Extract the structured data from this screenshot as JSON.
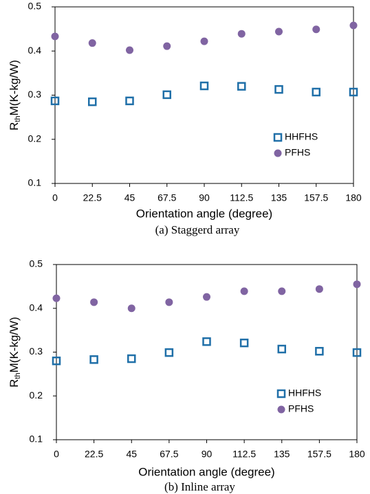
{
  "chart_data": [
    {
      "type": "scatter",
      "caption": "(a)  Staggerd array",
      "xlabel": "Orientation angle (degree)",
      "ylabel": {
        "base": "R",
        "sub": "th",
        "rest": "M(K-kg/W)"
      },
      "x": [
        0,
        22.5,
        45,
        67.5,
        90,
        112.5,
        135,
        157.5,
        180
      ],
      "xlim": [
        0,
        180
      ],
      "xticks": [
        0,
        22.5,
        45,
        67.5,
        90,
        112.5,
        135,
        157.5,
        180
      ],
      "ylim": [
        0.1,
        0.5
      ],
      "yticks": [
        0.1,
        0.2,
        0.3,
        0.4,
        0.5
      ],
      "grid": false,
      "legend": "right",
      "series": [
        {
          "name": "HHFHS",
          "color": "#1f6fa8",
          "marker": "square-open",
          "values": [
            0.287,
            0.285,
            0.287,
            0.301,
            0.321,
            0.32,
            0.313,
            0.307,
            0.307
          ]
        },
        {
          "name": "PFHS",
          "color": "#8064a2",
          "marker": "circle",
          "values": [
            0.433,
            0.418,
            0.402,
            0.411,
            0.422,
            0.439,
            0.444,
            0.449,
            0.458
          ]
        }
      ]
    },
    {
      "type": "scatter",
      "caption": "(b)  Inline array",
      "xlabel": "Orientation angle (degree)",
      "ylabel": {
        "base": "R",
        "sub": "th",
        "rest": "M(K-kg/W)"
      },
      "x": [
        0,
        22.5,
        45,
        67.5,
        90,
        112.5,
        135,
        157.5,
        180
      ],
      "xlim": [
        0,
        180
      ],
      "xticks": [
        0,
        22.5,
        45,
        67.5,
        90,
        112.5,
        135,
        157.5,
        180
      ],
      "ylim": [
        0.1,
        0.5
      ],
      "yticks": [
        0.1,
        0.2,
        0.3,
        0.4,
        0.5
      ],
      "grid": false,
      "legend": "right",
      "series": [
        {
          "name": "HHFHS",
          "color": "#1f6fa8",
          "marker": "square-open",
          "values": [
            0.28,
            0.283,
            0.285,
            0.299,
            0.324,
            0.321,
            0.307,
            0.302,
            0.299
          ]
        },
        {
          "name": "PFHS",
          "color": "#8064a2",
          "marker": "circle",
          "values": [
            0.423,
            0.414,
            0.4,
            0.414,
            0.426,
            0.439,
            0.439,
            0.444,
            0.455
          ]
        }
      ]
    }
  ]
}
